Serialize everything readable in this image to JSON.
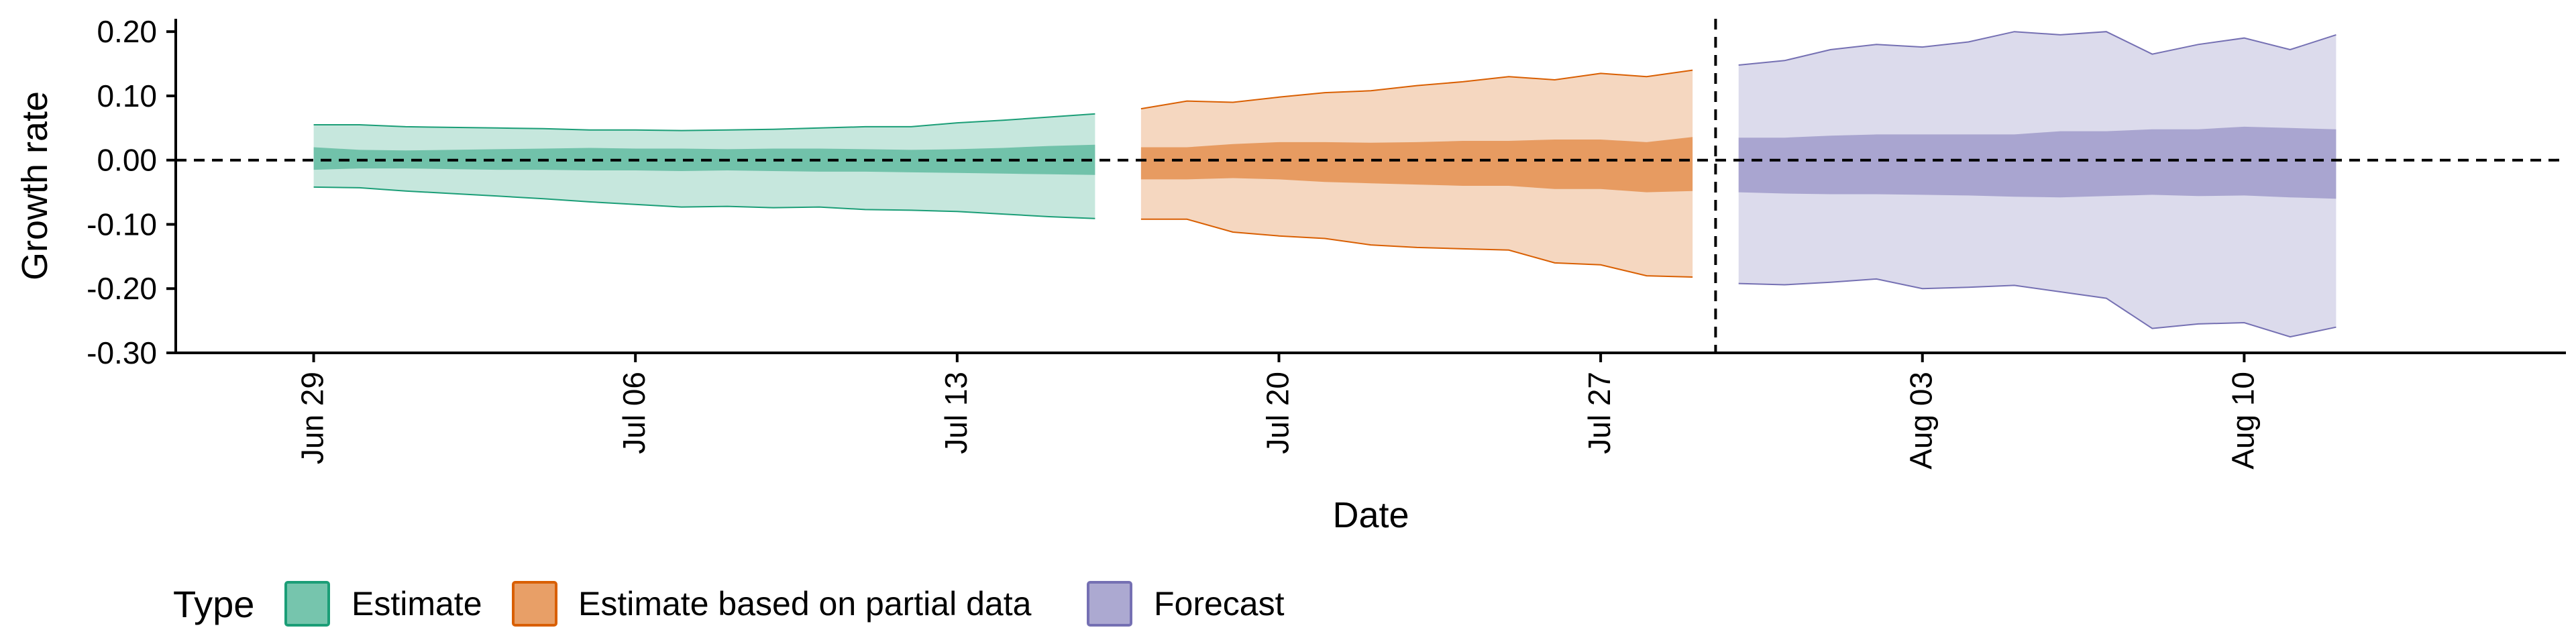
{
  "chart_data": {
    "type": "area",
    "xlabel": "Date",
    "ylabel": "Growth rate",
    "ylim": [
      -0.3,
      0.22
    ],
    "yticks": [
      -0.3,
      -0.2,
      -0.1,
      0.0,
      0.1,
      0.2
    ],
    "ytick_labels": [
      "-0.30",
      "-0.20",
      "-0.10",
      "0.00",
      "0.10",
      "0.20"
    ],
    "xlim": [
      "2021-06-26",
      "2021-08-17"
    ],
    "xticks": [
      "2021-06-29",
      "2021-07-06",
      "2021-07-13",
      "2021-07-20",
      "2021-07-27",
      "2021-08-03",
      "2021-08-10"
    ],
    "xtick_labels": [
      "Jun 29",
      "Jul 06",
      "Jul 13",
      "Jul 20",
      "Jul 27",
      "Aug 03",
      "Aug 10"
    ],
    "hline": 0.0,
    "vline": "2021-07-29",
    "legend": {
      "title": "Type",
      "position": "bottom-left",
      "entries": [
        "Estimate",
        "Estimate based on partial data",
        "Forecast"
      ]
    },
    "series": [
      {
        "name": "Estimate",
        "fill_color": "#1b9e77",
        "line_color": "#1b9e77",
        "dates": [
          "2021-06-29",
          "2021-06-30",
          "2021-07-01",
          "2021-07-02",
          "2021-07-03",
          "2021-07-04",
          "2021-07-05",
          "2021-07-06",
          "2021-07-07",
          "2021-07-08",
          "2021-07-09",
          "2021-07-10",
          "2021-07-11",
          "2021-07-12",
          "2021-07-13",
          "2021-07-14",
          "2021-07-15",
          "2021-07-16"
        ],
        "outer_upper": [
          0.055,
          0.055,
          0.052,
          0.051,
          0.05,
          0.049,
          0.047,
          0.047,
          0.046,
          0.047,
          0.048,
          0.05,
          0.052,
          0.052,
          0.058,
          0.062,
          0.067,
          0.072
        ],
        "outer_lower": [
          -0.042,
          -0.043,
          -0.048,
          -0.052,
          -0.056,
          -0.06,
          -0.065,
          -0.069,
          -0.073,
          -0.072,
          -0.074,
          -0.073,
          -0.077,
          -0.078,
          -0.08,
          -0.084,
          -0.088,
          -0.091
        ],
        "inner_upper": [
          0.02,
          0.016,
          0.015,
          0.016,
          0.017,
          0.018,
          0.019,
          0.018,
          0.018,
          0.017,
          0.018,
          0.018,
          0.017,
          0.016,
          0.017,
          0.019,
          0.022,
          0.024
        ],
        "inner_lower": [
          -0.015,
          -0.013,
          -0.013,
          -0.014,
          -0.015,
          -0.015,
          -0.016,
          -0.016,
          -0.017,
          -0.016,
          -0.017,
          -0.018,
          -0.018,
          -0.019,
          -0.02,
          -0.021,
          -0.022,
          -0.023
        ]
      },
      {
        "name": "Estimate based on partial data",
        "fill_color": "#d95f02",
        "line_color": "#d95f02",
        "dates": [
          "2021-07-17",
          "2021-07-18",
          "2021-07-19",
          "2021-07-20",
          "2021-07-21",
          "2021-07-22",
          "2021-07-23",
          "2021-07-24",
          "2021-07-25",
          "2021-07-26",
          "2021-07-27",
          "2021-07-28",
          "2021-07-29"
        ],
        "outer_upper": [
          0.08,
          0.092,
          0.09,
          0.098,
          0.105,
          0.108,
          0.116,
          0.122,
          0.13,
          0.125,
          0.135,
          0.13,
          0.14
        ],
        "outer_lower": [
          -0.092,
          -0.092,
          -0.112,
          -0.118,
          -0.122,
          -0.132,
          -0.136,
          -0.138,
          -0.14,
          -0.16,
          -0.163,
          -0.18,
          -0.182
        ],
        "inner_upper": [
          0.02,
          0.02,
          0.025,
          0.028,
          0.028,
          0.027,
          0.028,
          0.03,
          0.03,
          0.032,
          0.032,
          0.028,
          0.036
        ],
        "inner_lower": [
          -0.03,
          -0.03,
          -0.028,
          -0.03,
          -0.034,
          -0.036,
          -0.038,
          -0.04,
          -0.04,
          -0.045,
          -0.045,
          -0.05,
          -0.048
        ]
      },
      {
        "name": "Forecast",
        "fill_color": "#7570b3",
        "line_color": "#7570b3",
        "dates": [
          "2021-07-30",
          "2021-07-31",
          "2021-08-01",
          "2021-08-02",
          "2021-08-03",
          "2021-08-04",
          "2021-08-05",
          "2021-08-06",
          "2021-08-07",
          "2021-08-08",
          "2021-08-09",
          "2021-08-10",
          "2021-08-11",
          "2021-08-12"
        ],
        "outer_upper": [
          0.148,
          0.155,
          0.172,
          0.18,
          0.176,
          0.184,
          0.2,
          0.195,
          0.2,
          0.165,
          0.18,
          0.19,
          0.172,
          0.195
        ],
        "outer_lower": [
          -0.192,
          -0.194,
          -0.19,
          -0.185,
          -0.2,
          -0.198,
          -0.195,
          -0.205,
          -0.215,
          -0.262,
          -0.255,
          -0.253,
          -0.275,
          -0.26
        ],
        "inner_upper": [
          0.035,
          0.035,
          0.038,
          0.04,
          0.04,
          0.04,
          0.04,
          0.045,
          0.045,
          0.048,
          0.048,
          0.052,
          0.05,
          0.048
        ],
        "inner_lower": [
          -0.05,
          -0.052,
          -0.053,
          -0.053,
          -0.054,
          -0.055,
          -0.057,
          -0.058,
          -0.056,
          -0.054,
          -0.056,
          -0.055,
          -0.058,
          -0.06
        ]
      }
    ]
  }
}
